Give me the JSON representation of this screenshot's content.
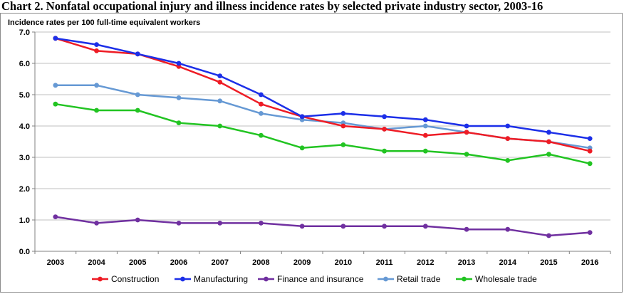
{
  "chart_data": {
    "type": "line",
    "title": "Chart 2. Nonfatal occupational injury and illness incidence rates by selected private industry sector, 2003-16",
    "ylabel": "Incidence rates per 100 full-time equivalent workers",
    "xlabel": "",
    "ylim": [
      0,
      7
    ],
    "yticks": [
      "0.0",
      "1.0",
      "2.0",
      "3.0",
      "4.0",
      "5.0",
      "6.0",
      "7.0"
    ],
    "grid": "horizontal",
    "legend_position": "bottom",
    "categories": [
      "2003",
      "2004",
      "2005",
      "2006",
      "2007",
      "2008",
      "2009",
      "2010",
      "2011",
      "2012",
      "2013",
      "2014",
      "2015",
      "2016"
    ],
    "series": [
      {
        "name": "Construction",
        "color": "#ee1c25",
        "values": [
          6.8,
          6.4,
          6.3,
          5.9,
          5.4,
          4.7,
          4.3,
          4.0,
          3.9,
          3.7,
          3.8,
          3.6,
          3.5,
          3.2
        ]
      },
      {
        "name": "Manufacturing",
        "color": "#1c2fe8",
        "values": [
          6.8,
          6.6,
          6.3,
          6.0,
          5.6,
          5.0,
          4.3,
          4.4,
          4.3,
          4.2,
          4.0,
          4.0,
          3.8,
          3.6
        ]
      },
      {
        "name": "Finance and insurance",
        "color": "#7030a0",
        "values": [
          1.1,
          0.9,
          1.0,
          0.9,
          0.9,
          0.9,
          0.8,
          0.8,
          0.8,
          0.8,
          0.7,
          0.7,
          0.5,
          0.6
        ]
      },
      {
        "name": "Retail trade",
        "color": "#6699d4",
        "values": [
          5.3,
          5.3,
          5.0,
          4.9,
          4.8,
          4.4,
          4.2,
          4.1,
          3.9,
          4.0,
          3.8,
          3.6,
          3.5,
          3.3
        ]
      },
      {
        "name": "Wholesale trade",
        "color": "#22c422",
        "values": [
          4.7,
          4.5,
          4.5,
          4.1,
          4.0,
          3.7,
          3.3,
          3.4,
          3.2,
          3.2,
          3.1,
          2.9,
          3.1,
          2.8
        ]
      }
    ],
    "draw_order": [
      2,
      4,
      3,
      0,
      1
    ]
  }
}
